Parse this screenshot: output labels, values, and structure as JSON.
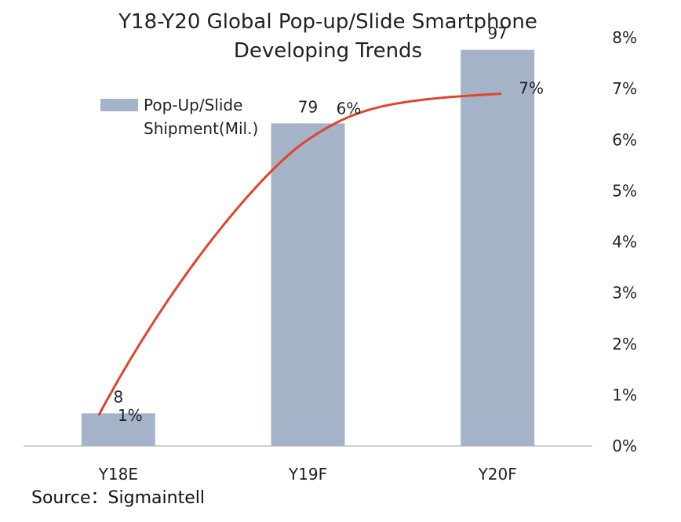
{
  "chart_data": {
    "type": "bar",
    "title_line1": "Y18-Y20 Global Pop-up/Slide Smartphone",
    "title_line2": "Developing Trends",
    "categories": [
      "Y18E",
      "Y19F",
      "Y20F"
    ],
    "series": [
      {
        "name": "Pop-Up/Slide Shipment(Mil.)",
        "legend_line1": "Pop-Up/Slide",
        "legend_line2": "Shipment(Mil.)",
        "type": "bar",
        "axis": "primary",
        "color": "#a5b3c8",
        "values": [
          8,
          79,
          97
        ],
        "labels": [
          "8",
          "79",
          "97"
        ]
      },
      {
        "type": "line",
        "axis": "secondary",
        "color": "#e0452b",
        "values": [
          0.6,
          6.0,
          6.9
        ],
        "labels": [
          "1%",
          "6%",
          "7%"
        ]
      }
    ],
    "y_left_range": [
      0,
      100
    ],
    "y_right_range": [
      0,
      8
    ],
    "y_right_ticks": [
      "0%",
      "1%",
      "2%",
      "3%",
      "4%",
      "5%",
      "6%",
      "7%",
      "8%"
    ],
    "legend_position": "top-left",
    "grid": false
  },
  "source": "Source：Sigmaintell"
}
